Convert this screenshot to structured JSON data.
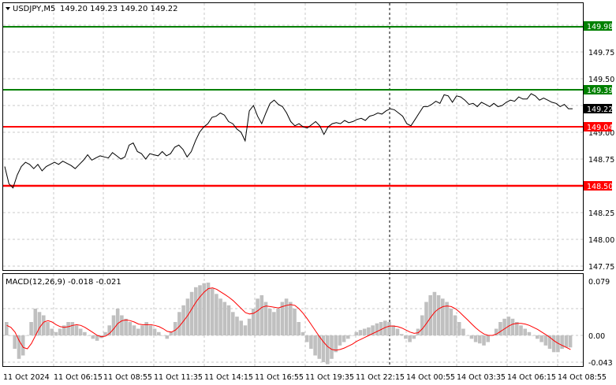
{
  "header": {
    "symbol_label": "USDJPY,M5",
    "ohlc": "149.20 149.23 149.20 149.22"
  },
  "price_axis": {
    "ticks": [
      "149.75",
      "149.50",
      "149.00",
      "148.75",
      "148.25",
      "148.00",
      "147.75"
    ]
  },
  "levels": [
    {
      "label": "149.98",
      "value": 149.98,
      "color": "#008000"
    },
    {
      "label": "149.39",
      "value": 149.39,
      "color": "#008000"
    },
    {
      "label": "149.04",
      "value": 149.04,
      "color": "#ff0000"
    },
    {
      "label": "148.50",
      "value": 148.5,
      "color": "#ff0000"
    }
  ],
  "current_price": {
    "label": "149.22",
    "value": 149.22
  },
  "macd": {
    "title": "MACD(12,26,9) -0.018 -0.021",
    "ticks": [
      {
        "label": "0.079",
        "value": 0.079
      },
      {
        "label": "0.00",
        "value": 0.0
      },
      {
        "label": "-0.043",
        "value": -0.043
      }
    ]
  },
  "time_axis": {
    "labels": [
      "11 Oct 2024",
      "11 Oct 06:15",
      "11 Oct 08:55",
      "11 Oct 11:35",
      "11 Oct 14:15",
      "11 Oct 16:55",
      "11 Oct 19:35",
      "11 Oct 22:15",
      "14 Oct 00:55",
      "14 Oct 03:35",
      "14 Oct 06:15",
      "14 Oct 08:55"
    ],
    "separator_label": "11 Oct 22:15"
  },
  "colors": {
    "price_line": "#000000",
    "histogram": "#c0c0c0",
    "signal": "#ff0000",
    "grid": "#c8c8c8",
    "label_bg_current": "#000000"
  },
  "chart_data": {
    "type": "line",
    "price_series": [
      148.68,
      148.52,
      148.48,
      148.6,
      148.68,
      148.72,
      148.7,
      148.66,
      148.7,
      148.64,
      148.68,
      148.7,
      148.72,
      148.7,
      148.73,
      148.71,
      148.69,
      148.66,
      148.7,
      148.74,
      148.79,
      148.74,
      148.76,
      148.78,
      148.77,
      148.76,
      148.81,
      148.78,
      148.75,
      148.77,
      148.88,
      148.9,
      148.82,
      148.8,
      148.75,
      148.8,
      148.79,
      148.78,
      148.82,
      148.78,
      148.8,
      148.86,
      148.88,
      148.84,
      148.77,
      148.82,
      148.92,
      149.0,
      149.05,
      149.08,
      149.14,
      149.15,
      149.18,
      149.16,
      149.1,
      149.08,
      149.03,
      149.0,
      148.92,
      149.2,
      149.25,
      149.15,
      149.08,
      149.18,
      149.27,
      149.3,
      149.26,
      149.24,
      149.18,
      149.1,
      149.06,
      149.08,
      149.05,
      149.04,
      149.07,
      149.1,
      149.06,
      148.98,
      149.05,
      149.08,
      149.09,
      149.08,
      149.11,
      149.09,
      149.1,
      149.12,
      149.13,
      149.11,
      149.15,
      149.16,
      149.18,
      149.17,
      149.2,
      149.22,
      149.21,
      149.18,
      149.15,
      149.08,
      149.06,
      149.12,
      149.18,
      149.24,
      149.24,
      149.26,
      149.29,
      149.27,
      149.35,
      149.34,
      149.28,
      149.34,
      149.33,
      149.3,
      149.26,
      149.27,
      149.24,
      149.28,
      149.26,
      149.24,
      149.27,
      149.24,
      149.25,
      149.28,
      149.3,
      149.29,
      149.33,
      149.31,
      149.31,
      149.36,
      149.34,
      149.3,
      149.32,
      149.3,
      149.28,
      149.27,
      149.24,
      149.26,
      149.22,
      149.22
    ],
    "macd_histogram": [
      0.02,
      0.0,
      -0.02,
      -0.035,
      -0.03,
      0.0,
      0.02,
      0.04,
      0.035,
      0.03,
      0.02,
      0.01,
      0.005,
      0.01,
      0.015,
      0.02,
      0.02,
      0.015,
      0.01,
      0.005,
      0.0,
      -0.005,
      -0.008,
      -0.004,
      0.005,
      0.015,
      0.03,
      0.04,
      0.03,
      0.025,
      0.02,
      0.015,
      0.01,
      0.015,
      0.02,
      0.015,
      0.01,
      0.005,
      0.0,
      -0.005,
      0.005,
      0.02,
      0.035,
      0.045,
      0.055,
      0.065,
      0.072,
      0.075,
      0.078,
      0.079,
      0.07,
      0.062,
      0.055,
      0.05,
      0.045,
      0.035,
      0.028,
      0.022,
      0.015,
      0.025,
      0.04,
      0.055,
      0.06,
      0.05,
      0.04,
      0.035,
      0.04,
      0.05,
      0.055,
      0.05,
      0.04,
      0.02,
      0.005,
      -0.01,
      -0.02,
      -0.03,
      -0.035,
      -0.04,
      -0.043,
      -0.035,
      -0.025,
      -0.015,
      -0.01,
      -0.005,
      0.0,
      0.005,
      0.008,
      0.01,
      0.012,
      0.015,
      0.018,
      0.02,
      0.022,
      0.02,
      0.015,
      0.01,
      0.002,
      -0.005,
      -0.01,
      -0.005,
      0.01,
      0.03,
      0.05,
      0.06,
      0.065,
      0.06,
      0.055,
      0.05,
      0.04,
      0.03,
      0.02,
      0.01,
      0.0,
      -0.005,
      -0.01,
      -0.012,
      -0.015,
      -0.01,
      0.0,
      0.01,
      0.02,
      0.025,
      0.028,
      0.025,
      0.02,
      0.015,
      0.01,
      0.005,
      0.0,
      -0.005,
      -0.01,
      -0.015,
      -0.02,
      -0.025,
      -0.025,
      -0.02,
      -0.018,
      -0.018
    ],
    "macd_signal": [
      0.015,
      0.012,
      0.005,
      -0.008,
      -0.018,
      -0.02,
      -0.012,
      0.0,
      0.012,
      0.02,
      0.022,
      0.02,
      0.016,
      0.013,
      0.012,
      0.013,
      0.015,
      0.016,
      0.015,
      0.012,
      0.008,
      0.004,
      0.0,
      -0.002,
      -0.001,
      0.003,
      0.01,
      0.018,
      0.022,
      0.023,
      0.022,
      0.02,
      0.017,
      0.016,
      0.016,
      0.016,
      0.015,
      0.013,
      0.01,
      0.006,
      0.005,
      0.008,
      0.014,
      0.022,
      0.03,
      0.04,
      0.05,
      0.058,
      0.065,
      0.07,
      0.071,
      0.069,
      0.065,
      0.061,
      0.057,
      0.052,
      0.046,
      0.04,
      0.034,
      0.032,
      0.033,
      0.037,
      0.042,
      0.044,
      0.043,
      0.042,
      0.041,
      0.043,
      0.045,
      0.046,
      0.045,
      0.04,
      0.033,
      0.025,
      0.016,
      0.007,
      -0.002,
      -0.01,
      -0.017,
      -0.021,
      -0.022,
      -0.021,
      -0.019,
      -0.016,
      -0.013,
      -0.009,
      -0.006,
      -0.003,
      0.0,
      0.003,
      0.006,
      0.009,
      0.012,
      0.014,
      0.014,
      0.013,
      0.011,
      0.008,
      0.005,
      0.003,
      0.004,
      0.01,
      0.018,
      0.027,
      0.035,
      0.04,
      0.043,
      0.044,
      0.043,
      0.04,
      0.035,
      0.029,
      0.023,
      0.017,
      0.011,
      0.006,
      0.002,
      0.0,
      0.0,
      0.002,
      0.006,
      0.01,
      0.014,
      0.017,
      0.018,
      0.018,
      0.017,
      0.015,
      0.012,
      0.009,
      0.005,
      0.001,
      -0.003,
      -0.008,
      -0.012,
      -0.015,
      -0.018,
      -0.021
    ]
  }
}
